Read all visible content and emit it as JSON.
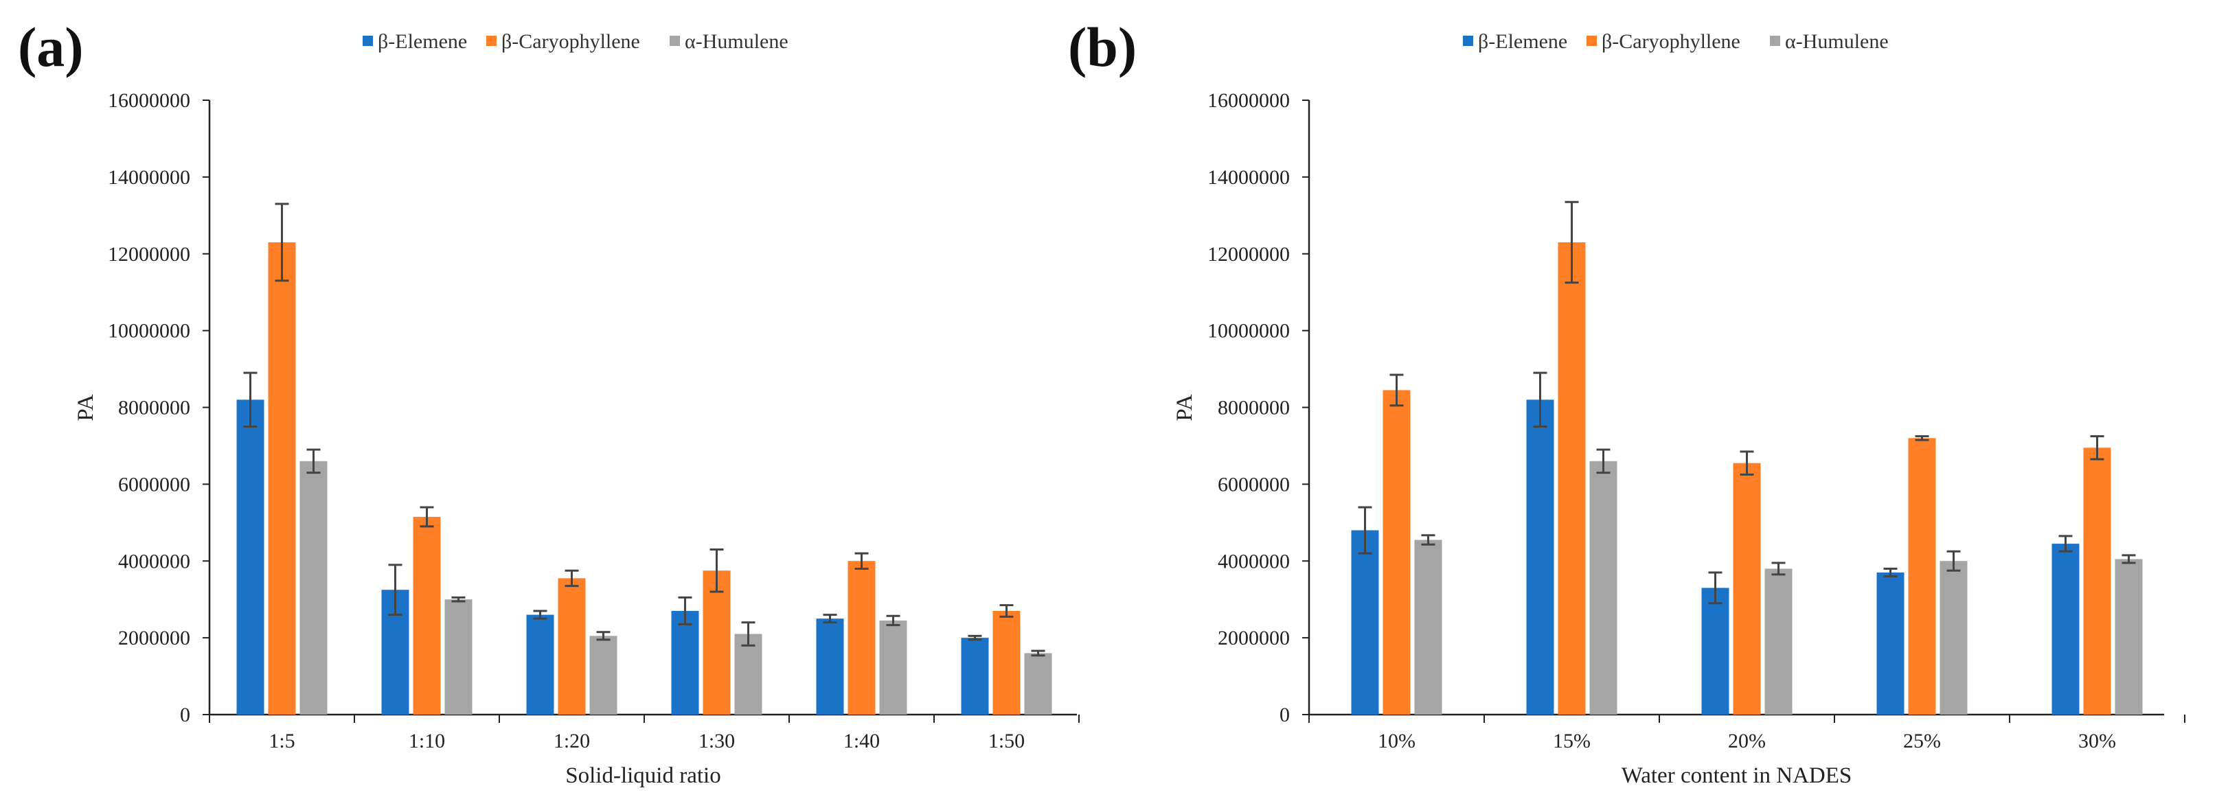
{
  "chart_data": [
    {
      "type": "bar",
      "panel_label": "(a)",
      "categories": [
        "1:5",
        "1:10",
        "1:20",
        "1:30",
        "1:40",
        "1:50"
      ],
      "series": [
        {
          "name": "β-Elemene",
          "color": "#1a73c6",
          "values": [
            8200000,
            3250000,
            2600000,
            2700000,
            2500000,
            2000000
          ],
          "errors": [
            700000,
            650000,
            100000,
            350000,
            100000,
            50000
          ]
        },
        {
          "name": "β-Caryophyllene",
          "color": "#ff7f27",
          "values": [
            12300000,
            5150000,
            3550000,
            3750000,
            4000000,
            2700000
          ],
          "errors": [
            1000000,
            250000,
            200000,
            550000,
            200000,
            150000
          ]
        },
        {
          "name": "α-Humulene",
          "color": "#a5a5a5",
          "values": [
            6600000,
            3000000,
            2050000,
            2100000,
            2450000,
            1600000
          ],
          "errors": [
            300000,
            50000,
            100000,
            300000,
            120000,
            60000
          ]
        }
      ],
      "xlabel": "Solid-liquid ratio",
      "ylabel": "PA",
      "ylim": [
        0,
        16000000
      ],
      "yticks": [
        "0",
        "2000000",
        "4000000",
        "6000000",
        "8000000",
        "10000000",
        "12000000",
        "14000000",
        "16000000"
      ],
      "legend_position": "top-center"
    },
    {
      "type": "bar",
      "panel_label": "(b)",
      "categories": [
        "10%",
        "15%",
        "20%",
        "25%",
        "30%"
      ],
      "series": [
        {
          "name": "β-Elemene",
          "color": "#1a73c6",
          "values": [
            4800000,
            8200000,
            3300000,
            3700000,
            4450000
          ],
          "errors": [
            600000,
            700000,
            400000,
            100000,
            200000
          ]
        },
        {
          "name": "β-Caryophyllene",
          "color": "#ff7f27",
          "values": [
            8450000,
            12300000,
            6550000,
            7200000,
            6950000
          ],
          "errors": [
            400000,
            1050000,
            300000,
            50000,
            300000
          ]
        },
        {
          "name": "α-Humulene",
          "color": "#a5a5a5",
          "values": [
            4550000,
            6600000,
            3800000,
            4000000,
            4050000
          ],
          "errors": [
            120000,
            300000,
            150000,
            250000,
            100000
          ]
        }
      ],
      "xlabel": "Water content in NADES",
      "ylabel": "PA",
      "ylim": [
        0,
        16000000
      ],
      "yticks": [
        "0",
        "2000000",
        "4000000",
        "6000000",
        "8000000",
        "10000000",
        "12000000",
        "14000000",
        "16000000"
      ],
      "legend_position": "top-center"
    }
  ]
}
